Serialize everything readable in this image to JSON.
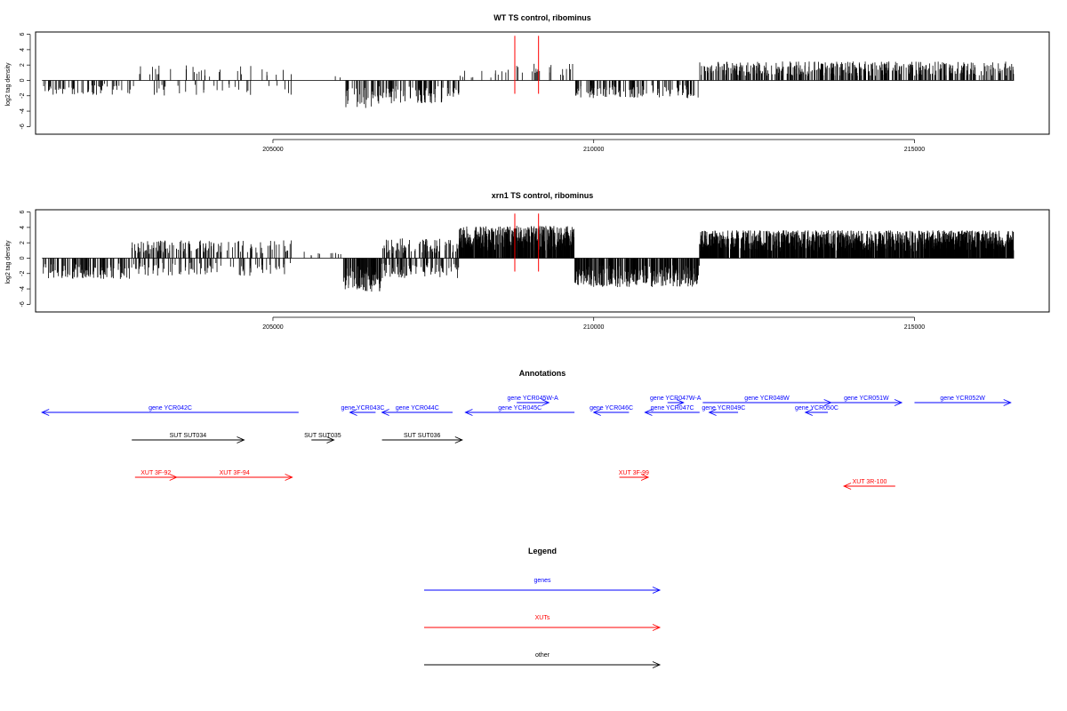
{
  "chart_data": [
    {
      "type": "bar",
      "title": "WT TS control, ribominus",
      "ylabel": "log2 tag density",
      "xlim": [
        201300,
        217100
      ],
      "ylim": [
        -7,
        6.3
      ],
      "xticks": [
        205000,
        210000,
        215000
      ],
      "yticks": [
        -6,
        -4,
        -2,
        0,
        2,
        4,
        6
      ],
      "grid": false,
      "series_color": "#000000",
      "marker_color": "#ff0000",
      "markers_x": [
        208770,
        209140
      ],
      "markers_height": 5.8,
      "segments": [
        {
          "start": 201400,
          "end": 202800,
          "level": -1.3,
          "sign": -1,
          "density": 0.03
        },
        {
          "start": 202800,
          "end": 203800,
          "level": 1.4,
          "sign": 0,
          "density": 0.02
        },
        {
          "start": 203800,
          "end": 205300,
          "level": -1.3,
          "sign": 0,
          "density": 0.02
        },
        {
          "start": 205300,
          "end": 206100,
          "level": 0.5,
          "sign": 1,
          "density": 0.006
        },
        {
          "start": 206100,
          "end": 206600,
          "level": -2.6,
          "sign": -1,
          "density": 0.08
        },
        {
          "start": 206600,
          "end": 207900,
          "level": -2.1,
          "sign": -1,
          "density": 0.07
        },
        {
          "start": 207900,
          "end": 208700,
          "level": 1.0,
          "sign": 1,
          "density": 0.02
        },
        {
          "start": 208700,
          "end": 209700,
          "level": 1.5,
          "sign": 1,
          "density": 0.02
        },
        {
          "start": 209700,
          "end": 211650,
          "level": -1.6,
          "sign": -1,
          "density": 0.05
        },
        {
          "start": 211650,
          "end": 216550,
          "level": 1.7,
          "sign": 1,
          "density": 0.09
        }
      ]
    },
    {
      "type": "bar",
      "title": "xrn1 TS control, ribominus",
      "ylabel": "log2 tag density",
      "xlim": [
        201300,
        217100
      ],
      "ylim": [
        -7,
        6.3
      ],
      "xticks": [
        205000,
        210000,
        215000
      ],
      "yticks": [
        -6,
        -4,
        -2,
        0,
        2,
        4,
        6
      ],
      "grid": false,
      "series_color": "#000000",
      "marker_color": "#ff0000",
      "markers_x": [
        208770,
        209140
      ],
      "markers_height": 5.8,
      "segments": [
        {
          "start": 201400,
          "end": 202800,
          "level": -1.9,
          "sign": -1,
          "density": 0.09
        },
        {
          "start": 202800,
          "end": 204100,
          "level": 1.6,
          "sign": 0,
          "density": 0.1
        },
        {
          "start": 204100,
          "end": 205300,
          "level": -1.6,
          "sign": 0,
          "density": 0.07
        },
        {
          "start": 205300,
          "end": 206100,
          "level": 0.6,
          "sign": 1,
          "density": 0.008
        },
        {
          "start": 206100,
          "end": 206700,
          "level": -3.0,
          "sign": -1,
          "density": 0.13
        },
        {
          "start": 206700,
          "end": 207900,
          "level": 1.8,
          "sign": 0,
          "density": 0.13
        },
        {
          "start": 207900,
          "end": 209700,
          "level": 2.9,
          "sign": 1,
          "density": 0.28
        },
        {
          "start": 209700,
          "end": 211650,
          "level": -2.6,
          "sign": -1,
          "density": 0.17
        },
        {
          "start": 211650,
          "end": 216550,
          "level": 2.5,
          "sign": 1,
          "density": 0.28
        }
      ]
    }
  ],
  "annotations": {
    "title": "Annotations",
    "xlim": [
      201300,
      217100
    ],
    "items": [
      {
        "label": "gene YCR042C",
        "start": 201400,
        "end": 205400,
        "row": 1,
        "dir": -1,
        "type": "gene"
      },
      {
        "label": "gene YCR043C",
        "start": 206200,
        "end": 206600,
        "row": 1,
        "dir": -1,
        "type": "gene"
      },
      {
        "label": "gene YCR044C",
        "start": 206700,
        "end": 207800,
        "row": 1,
        "dir": -1,
        "type": "gene"
      },
      {
        "label": "gene YCR045W-A",
        "start": 208800,
        "end": 209300,
        "row": 0,
        "dir": 1,
        "type": "gene"
      },
      {
        "label": "gene YCR045C",
        "start": 208000,
        "end": 209700,
        "row": 1,
        "dir": -1,
        "type": "gene"
      },
      {
        "label": "gene YCR046C",
        "start": 210000,
        "end": 210550,
        "row": 1,
        "dir": -1,
        "type": "gene"
      },
      {
        "label": "gene YCR047W-A",
        "start": 211150,
        "end": 211400,
        "row": 0,
        "dir": 1,
        "type": "gene"
      },
      {
        "label": "gene YCR047C",
        "start": 210800,
        "end": 211650,
        "row": 1,
        "dir": -1,
        "type": "gene"
      },
      {
        "label": "gene YCR048W",
        "start": 211700,
        "end": 213700,
        "row": 0,
        "dir": 1,
        "type": "gene"
      },
      {
        "label": "gene YCR049C",
        "start": 211800,
        "end": 212250,
        "row": 1,
        "dir": -1,
        "type": "gene"
      },
      {
        "label": "gene YCR050C",
        "start": 213300,
        "end": 213650,
        "row": 1,
        "dir": -1,
        "type": "gene"
      },
      {
        "label": "gene YCR051W",
        "start": 213700,
        "end": 214800,
        "row": 0,
        "dir": 1,
        "type": "gene"
      },
      {
        "label": "gene YCR052W",
        "start": 215000,
        "end": 216500,
        "row": 0,
        "dir": 1,
        "type": "gene"
      },
      {
        "label": "SUT SUT034",
        "start": 202800,
        "end": 204550,
        "row": 2,
        "dir": 1,
        "type": "other"
      },
      {
        "label": "SUT SUT035",
        "start": 205600,
        "end": 205950,
        "row": 2,
        "dir": 1,
        "type": "other"
      },
      {
        "label": "SUT SUT036",
        "start": 206700,
        "end": 207950,
        "row": 2,
        "dir": 1,
        "type": "other"
      },
      {
        "label": "XUT 3F-92",
        "start": 202850,
        "end": 203500,
        "row": 3,
        "dir": 1,
        "type": "xut"
      },
      {
        "label": "XUT 3F-94",
        "start": 203500,
        "end": 205300,
        "row": 3,
        "dir": 1,
        "type": "xut"
      },
      {
        "label": "XUT 3F-99",
        "start": 210400,
        "end": 210850,
        "row": 3,
        "dir": 1,
        "type": "xut"
      },
      {
        "label": "XUT 3R-100",
        "start": 213900,
        "end": 214700,
        "row": 4,
        "dir": -1,
        "type": "xut"
      }
    ]
  },
  "legend": {
    "title": "Legend",
    "entries": [
      {
        "label": "genes",
        "type": "gene"
      },
      {
        "label": "XUTs",
        "type": "xut"
      },
      {
        "label": "other",
        "type": "other"
      }
    ]
  },
  "colors": {
    "gene": "#0000ff",
    "xut": "#ff0000",
    "other": "#000000"
  }
}
